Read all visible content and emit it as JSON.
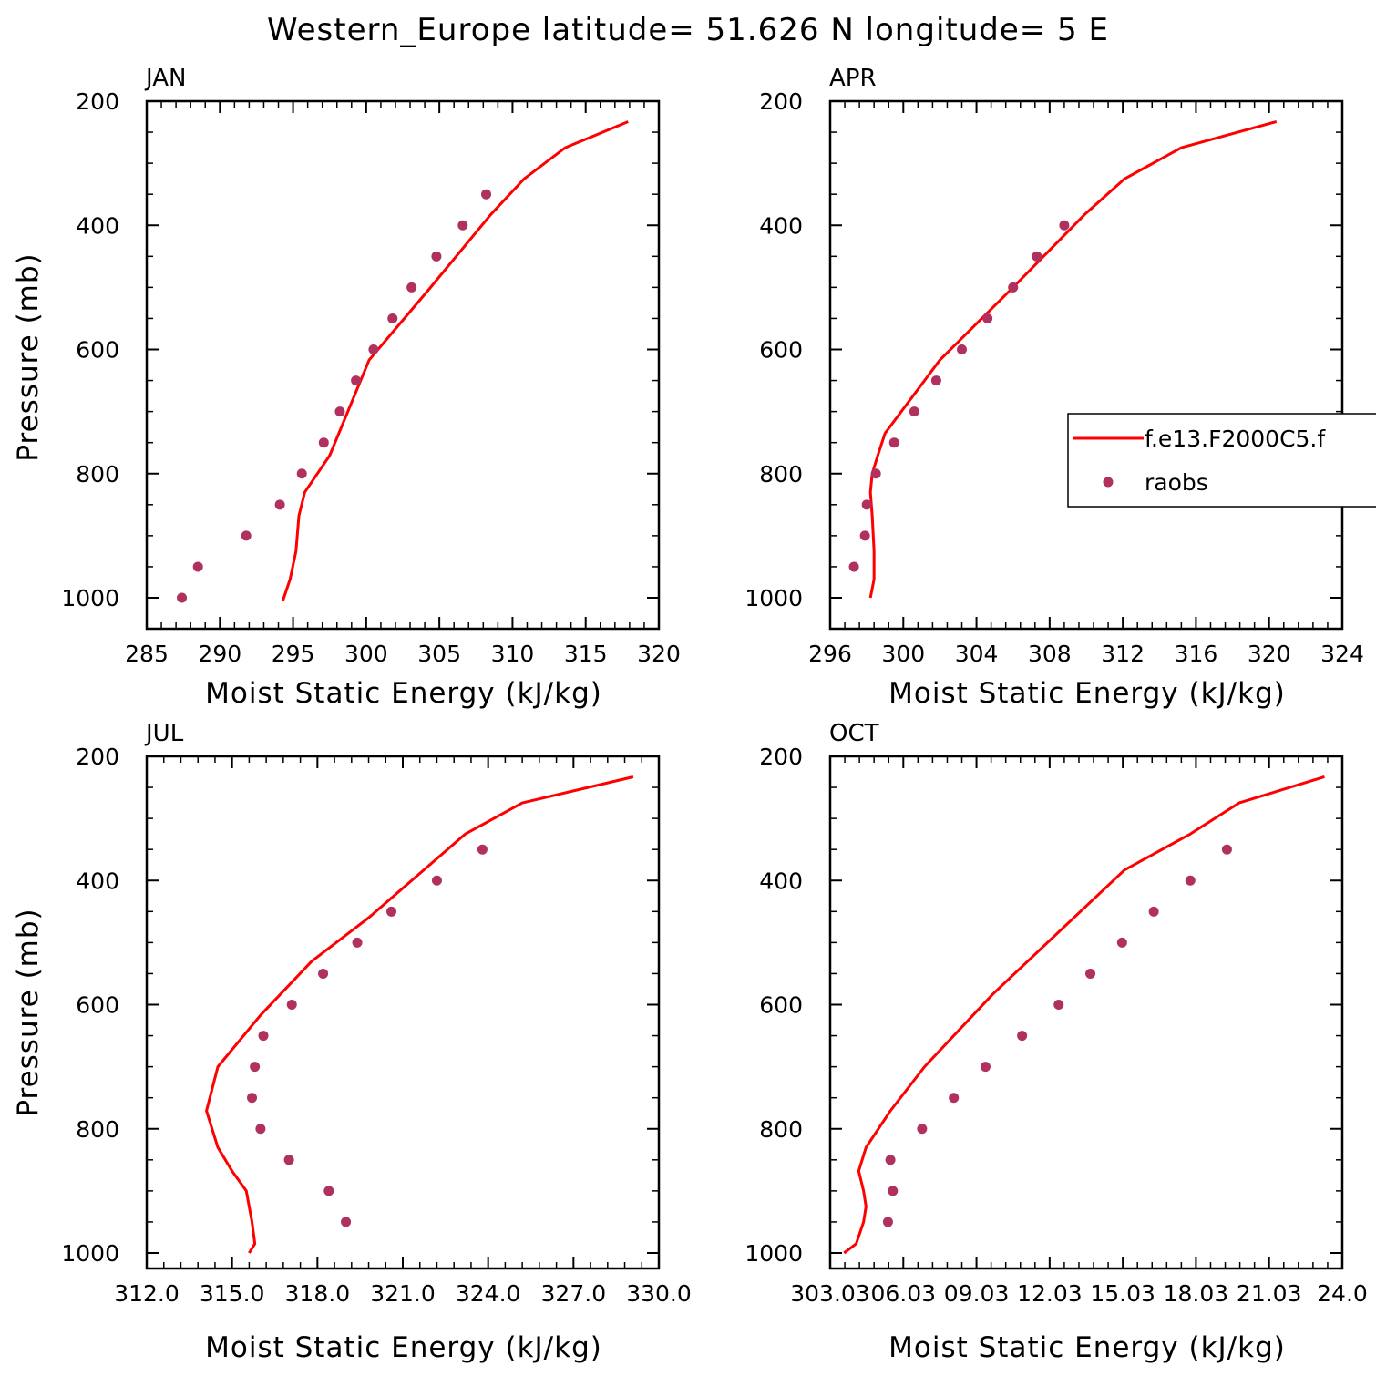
{
  "figure_title": "Western_Europe  latitude= 51.626 N longitude= 5 E",
  "legend": {
    "location": "APR panel, right edge",
    "model_label": "f.e13.F2000C5.f",
    "obs_label": "raobs"
  },
  "colors": {
    "model_line": "#ff0000",
    "obs_marker": "#b03060",
    "axes": "#000000"
  },
  "chart_data": [
    {
      "type": "scatter",
      "title": "JAN",
      "xlabel": "Moist Static Energy (kJ/kg)",
      "ylabel": "Pressure (mb)",
      "xlim": [
        285,
        320
      ],
      "ylim": [
        1025,
        200
      ],
      "y_inverted": true,
      "xticks": [
        "285",
        "290",
        "295",
        "300",
        "305",
        "310",
        "315",
        "320"
      ],
      "yticks": [
        "200",
        "400",
        "600",
        "800",
        "1000"
      ],
      "series": [
        {
          "name": "f.e13.F2000C5.f",
          "kind": "line",
          "x": [
            317.9,
            313.6,
            310.8,
            308.5,
            304.4,
            300.2,
            297.5,
            295.8,
            295.4,
            295.2,
            294.8,
            294.3
          ],
          "y": [
            233,
            275,
            325,
            383,
            500,
            617,
            771,
            830,
            868,
            925,
            970,
            1005
          ]
        },
        {
          "name": "raobs",
          "kind": "scatter",
          "x": [
            308.2,
            306.6,
            304.8,
            303.1,
            301.8,
            300.5,
            299.3,
            298.2,
            297.1,
            295.6,
            294.1,
            291.8,
            288.5,
            287.4
          ],
          "y": [
            350,
            400,
            450,
            500,
            550,
            600,
            650,
            700,
            750,
            800,
            850,
            900,
            950,
            1000
          ]
        }
      ]
    },
    {
      "type": "scatter",
      "title": "APR",
      "xlabel": "Moist Static Energy (kJ/kg)",
      "ylabel": "",
      "xlim": [
        296,
        324
      ],
      "ylim": [
        1025,
        200
      ],
      "y_inverted": true,
      "xticks": [
        "296",
        "300",
        "304",
        "308",
        "312",
        "316",
        "320",
        "324"
      ],
      "yticks": [
        "200",
        "400",
        "600",
        "800",
        "1000"
      ],
      "series": [
        {
          "name": "f.e13.F2000C5.f",
          "kind": "line",
          "x": [
            320.4,
            315.2,
            312.1,
            309.9,
            306.0,
            302.0,
            299.0,
            298.6,
            298.3,
            298.2,
            298.3,
            298.4,
            298.4,
            298.2
          ],
          "y": [
            233,
            275,
            325,
            383,
            500,
            617,
            735,
            771,
            800,
            830,
            868,
            925,
            970,
            1000
          ]
        },
        {
          "name": "raobs",
          "kind": "scatter",
          "x": [
            308.8,
            307.3,
            306.0,
            304.6,
            303.2,
            301.8,
            300.6,
            299.5,
            298.5,
            298.0,
            297.9,
            297.3
          ],
          "y": [
            400,
            450,
            500,
            550,
            600,
            650,
            700,
            750,
            800,
            850,
            900,
            950
          ]
        }
      ]
    },
    {
      "type": "scatter",
      "title": "JUL",
      "xlabel": "Moist Static Energy (kJ/kg)",
      "ylabel": "Pressure (mb)",
      "xlim": [
        312,
        330
      ],
      "ylim": [
        1025,
        200
      ],
      "y_inverted": true,
      "xticks": [
        "312.0",
        "315.0",
        "318.0",
        "321.0",
        "324.0",
        "327.0",
        "330.0"
      ],
      "yticks": [
        "200",
        "400",
        "600",
        "800",
        "1000"
      ],
      "series": [
        {
          "name": "f.e13.F2000C5.f",
          "kind": "line",
          "x": [
            329.1,
            325.2,
            323.2,
            319.8,
            317.8,
            316.0,
            314.5,
            314.1,
            314.5,
            315.0,
            315.5,
            315.7,
            315.8,
            315.6
          ],
          "y": [
            233,
            275,
            325,
            460,
            530,
            617,
            700,
            771,
            830,
            868,
            900,
            950,
            985,
            1000
          ]
        },
        {
          "name": "raobs",
          "kind": "scatter",
          "x": [
            323.8,
            322.2,
            320.6,
            319.4,
            318.2,
            317.1,
            316.1,
            315.8,
            315.7,
            316.0,
            317.0,
            318.4,
            319.0
          ],
          "y": [
            350,
            400,
            450,
            500,
            550,
            600,
            650,
            700,
            750,
            800,
            850,
            900,
            950
          ]
        }
      ]
    },
    {
      "type": "scatter",
      "title": "OCT",
      "xlabel": "Moist Static Energy (kJ/kg)",
      "ylabel": "",
      "xlim": [
        303.03,
        324.03
      ],
      "ylim": [
        1025,
        200
      ],
      "y_inverted": true,
      "xticks": [
        "303.03",
        "06.03",
        "09.03",
        "12.03",
        "15.03",
        "18.03",
        "21.03",
        "24.0"
      ],
      "yticks": [
        "200",
        "400",
        "600",
        "800",
        "1000"
      ],
      "series": [
        {
          "name": "f.e13.F2000C5.f",
          "kind": "line",
          "x": [
            323.3,
            319.8,
            317.8,
            315.1,
            309.7,
            306.9,
            305.5,
            304.5,
            304.2,
            304.4,
            304.5,
            304.4,
            304.1,
            303.6
          ],
          "y": [
            233,
            275,
            325,
            383,
            583,
            700,
            771,
            830,
            868,
            900,
            925,
            950,
            985,
            1000
          ]
        },
        {
          "name": "raobs",
          "kind": "scatter",
          "x": [
            319.3,
            317.8,
            316.3,
            315.0,
            313.7,
            312.4,
            310.9,
            309.4,
            308.1,
            306.8,
            305.5,
            305.6,
            305.4
          ],
          "y": [
            350,
            400,
            450,
            500,
            550,
            600,
            650,
            700,
            750,
            800,
            850,
            900,
            950
          ]
        }
      ]
    }
  ]
}
